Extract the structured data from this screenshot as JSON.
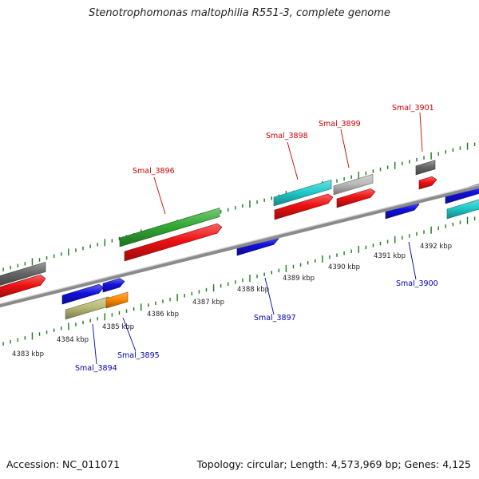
{
  "title": "Stenotrophomonas maltophilia R551-3, complete genome",
  "footer": {
    "accession": "Accession: NC_011071",
    "summary": "Topology: circular; Length: 4,573,969 bp; Genes: 4,125"
  },
  "colors": {
    "backbone": "#8a8a8a",
    "tick": "#1a7a1a",
    "label_top": "#cc0000",
    "label_bottom": "#0000aa",
    "scale_text": "#222222"
  },
  "scale": {
    "unit": "kbp",
    "labels": [
      "4383 kbp",
      "4384 kbp",
      "4385 kbp",
      "4386 kbp",
      "4387 kbp",
      "4388 kbp",
      "4389 kbp",
      "4390 kbp",
      "4391 kbp",
      "4392 kbp"
    ]
  },
  "gene_labels": [
    {
      "name": "Smal_3896",
      "strand": "top"
    },
    {
      "name": "Smal_3898",
      "strand": "top"
    },
    {
      "name": "Smal_3899",
      "strand": "top"
    },
    {
      "name": "Smal_3901",
      "strand": "top"
    },
    {
      "name": "Smal_3894",
      "strand": "bottom"
    },
    {
      "name": "Smal_3895",
      "strand": "bottom"
    },
    {
      "name": "Smal_3897",
      "strand": "bottom"
    },
    {
      "name": "Smal_3900",
      "strand": "bottom"
    }
  ],
  "feature_colors": {
    "cds": "#ee1111",
    "gene_gray_dark": "#666666",
    "gene_green": "#33aa33",
    "gene_cyan": "#22cccc",
    "gene_light_gray": "#bbbbbb",
    "gene_blue": "#1111dd",
    "gene_khaki": "#bbbb77",
    "gene_orange": "#ff8800"
  }
}
